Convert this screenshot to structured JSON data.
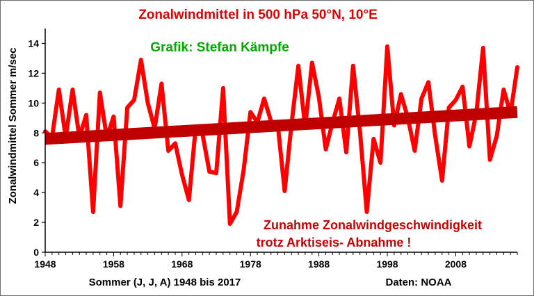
{
  "colors": {
    "title": "#dd0000",
    "credit": "#00aa00",
    "note": "#cc0000",
    "series": "#ff0000",
    "trend": "#c00000",
    "axis": "#000000"
  },
  "chart_data": {
    "type": "line",
    "title": "Zonalwindmittel in 500 hPa 50°N, 10°E",
    "credit": "Grafik: Stefan Kämpfe",
    "annotation_lines": [
      "Zunahme Zonalwindgeschwindigkeit",
      "trotz Arktiseis- Abnahme !"
    ],
    "xlabel": "Sommer (J, J, A) 1948 bis 2017",
    "ylabel": "Zonalwindmittel  Sommer m/sec",
    "source": "Daten: NOAA",
    "xlim": [
      1948,
      2017
    ],
    "ylim": [
      0,
      15
    ],
    "x_ticks": [
      1948,
      1958,
      1968,
      1978,
      1988,
      1998,
      2008
    ],
    "y_ticks": [
      0,
      2,
      4,
      6,
      8,
      10,
      12,
      14
    ],
    "grid": false,
    "legend": "none",
    "x": [
      1948,
      1949,
      1950,
      1951,
      1952,
      1953,
      1954,
      1955,
      1956,
      1957,
      1958,
      1959,
      1960,
      1961,
      1962,
      1963,
      1964,
      1965,
      1966,
      1967,
      1968,
      1969,
      1970,
      1971,
      1972,
      1973,
      1974,
      1975,
      1976,
      1977,
      1978,
      1979,
      1980,
      1981,
      1982,
      1983,
      1984,
      1985,
      1986,
      1987,
      1988,
      1989,
      1990,
      1991,
      1992,
      1993,
      1994,
      1995,
      1996,
      1997,
      1998,
      1999,
      2000,
      2001,
      2002,
      2003,
      2004,
      2005,
      2006,
      2007,
      2008,
      2009,
      2010,
      2011,
      2012,
      2013,
      2014,
      2015,
      2016,
      2017
    ],
    "series": [
      {
        "values": [
          8.1,
          7.7,
          10.9,
          7.7,
          10.9,
          7.7,
          9.2,
          2.7,
          10.7,
          7.7,
          9.1,
          3.1,
          9.7,
          10.2,
          12.9,
          10.0,
          8.3,
          11.3,
          6.8,
          7.3,
          5.2,
          3.5,
          8.4,
          7.9,
          5.4,
          5.3,
          11.0,
          1.9,
          2.7,
          5.5,
          9.4,
          8.7,
          10.3,
          8.8,
          8.5,
          4.1,
          8.6,
          12.5,
          8.4,
          12.7,
          10.4,
          6.9,
          8.7,
          10.3,
          6.7,
          12.5,
          8.1,
          2.7,
          7.6,
          6.0,
          13.8,
          8.5,
          10.6,
          9.0,
          6.8,
          10.3,
          11.4,
          7.8,
          4.8,
          9.7,
          10.2,
          11.1,
          7.1,
          9.3,
          13.7,
          6.2,
          7.8,
          10.9,
          9.3,
          12.4
        ]
      },
      {
        "name": "",
        "trend": true,
        "values_at_xlim": [
          7.6,
          9.4
        ]
      }
    ]
  }
}
